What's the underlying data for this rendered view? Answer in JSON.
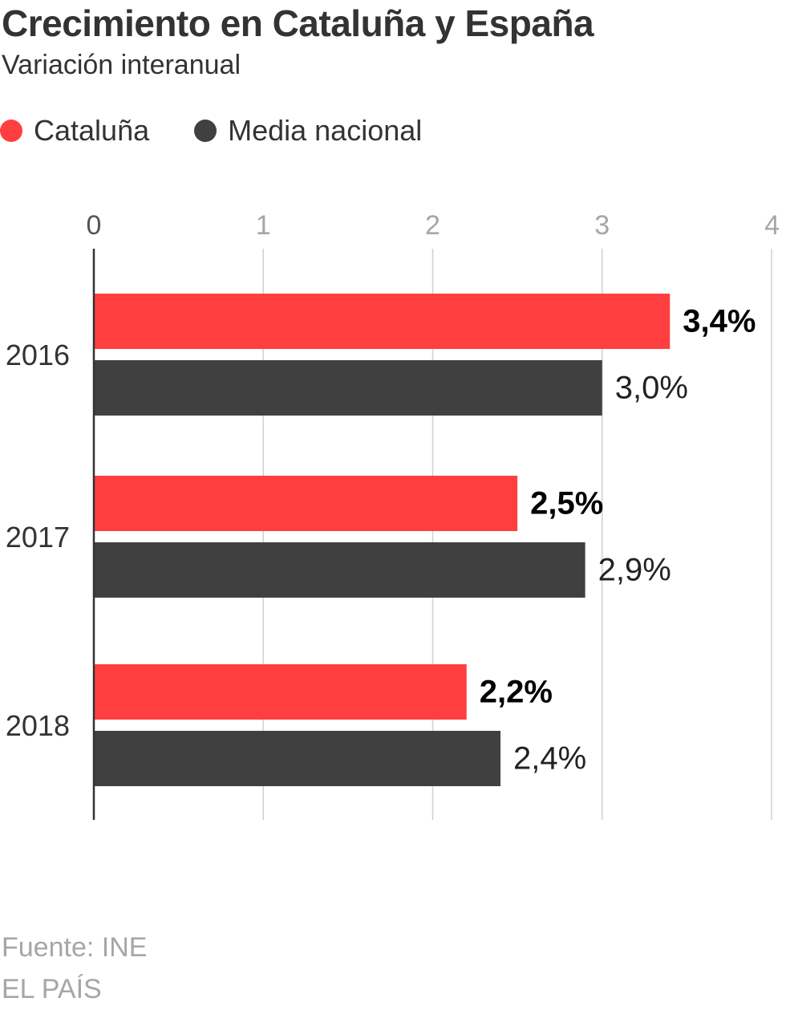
{
  "header": {
    "title": "Crecimiento en Cataluña y España",
    "subtitle": "Variación interanual"
  },
  "legend": [
    {
      "label": "Cataluña",
      "color": "#ff3f3f"
    },
    {
      "label": "Media nacional",
      "color": "#404040"
    }
  ],
  "chart_data": {
    "type": "bar",
    "orientation": "horizontal",
    "title": "Crecimiento en Cataluña y España",
    "subtitle": "Variación interanual",
    "xlabel": "",
    "ylabel": "",
    "xlim": [
      0,
      4
    ],
    "ticks": [
      "0",
      "1",
      "2",
      "3",
      "4"
    ],
    "grid": true,
    "legend_position": "top-left",
    "categories": [
      "2016",
      "2017",
      "2018"
    ],
    "series": [
      {
        "name": "Cataluña",
        "color": "#ff3f3f",
        "values": [
          3.4,
          2.5,
          2.2
        ],
        "labels": [
          "3,4%",
          "2,5%",
          "2,2%"
        ],
        "label_bold": true
      },
      {
        "name": "Media nacional",
        "color": "#404040",
        "values": [
          3.0,
          2.9,
          2.4
        ],
        "labels": [
          "3,0%",
          "2,9%",
          "2,4%"
        ],
        "label_bold": false
      }
    ]
  },
  "footer": {
    "source": "Fuente: INE",
    "brand": "EL PAÍS"
  }
}
